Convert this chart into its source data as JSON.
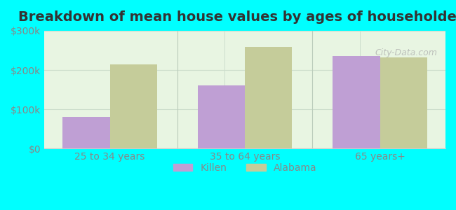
{
  "title": "Breakdown of mean house values by ages of householders",
  "categories": [
    "25 to 34 years",
    "35 to 64 years",
    "65 years+"
  ],
  "killen_values": [
    80000,
    160000,
    235000
  ],
  "alabama_values": [
    215000,
    258000,
    232000
  ],
  "killen_color": "#bf9fd4",
  "alabama_color": "#c5cc9a",
  "background_color": "#00ffff",
  "plot_bg_color_top": "#e8f5e8",
  "plot_bg_color_bottom": "#f0faf0",
  "ylim": [
    0,
    300000
  ],
  "yticks": [
    0,
    100000,
    200000,
    300000
  ],
  "ytick_labels": [
    "$0",
    "$100k",
    "$200k",
    "$300k"
  ],
  "legend_killen": "Killen",
  "legend_alabama": "Alabama",
  "bar_width": 0.35,
  "title_fontsize": 14,
  "tick_fontsize": 10,
  "legend_fontsize": 10
}
